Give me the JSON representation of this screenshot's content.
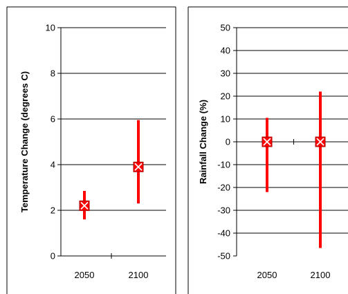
{
  "chart_data": [
    {
      "type": "scatter",
      "xlabel": "",
      "ylabel": "Temperature Change (degrees C)",
      "categories": [
        "2050",
        "2100"
      ],
      "ylim": [
        0,
        10
      ],
      "yticks": [
        "0",
        "2",
        "4",
        "6",
        "8",
        "10"
      ],
      "grid": true,
      "series": [
        {
          "points": [
            {
              "x": "2050",
              "y": 2.2,
              "low": 1.6,
              "high": 2.85
            },
            {
              "x": "2100",
              "y": 3.9,
              "low": 2.3,
              "high": 5.95
            }
          ]
        }
      ],
      "colors": {
        "error_bar": "#ff0000",
        "marker_fill": "#ff0000",
        "marker_edge": "#ffffff",
        "gridline": "#000000"
      }
    },
    {
      "type": "scatter",
      "xlabel": "",
      "ylabel": "Rainfall Change (%)",
      "categories": [
        "2050",
        "2100"
      ],
      "ylim": [
        -50,
        50
      ],
      "yticks": [
        "-50",
        "-40",
        "-30",
        "-20",
        "-10",
        "0",
        "10",
        "20",
        "30",
        "40",
        "50"
      ],
      "grid": true,
      "series": [
        {
          "points": [
            {
              "x": "2050",
              "y": 0,
              "low": -22,
              "high": 10.5
            },
            {
              "x": "2100",
              "y": 0,
              "low": -46.5,
              "high": 22
            }
          ]
        }
      ],
      "colors": {
        "error_bar": "#ff0000",
        "marker_fill": "#ff0000",
        "marker_edge": "#ffffff",
        "gridline": "#000000"
      }
    }
  ]
}
